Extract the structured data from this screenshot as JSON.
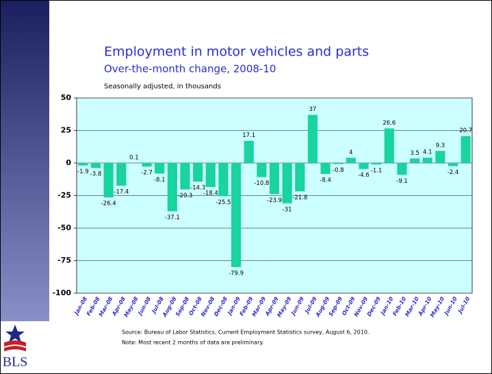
{
  "chart_data": {
    "type": "bar",
    "title": "Employment in motor vehicles and parts",
    "subtitle": "Over-the-month change, 2008-10",
    "unit_note": "Seasonally adjusted, in thousands",
    "source": "Source:  Bureau of Labor Statistics, Current Employment Statistics survey, August 6, 2010.",
    "footnote": "Note:  Most recent 2 months of data are preliminary.",
    "categories": [
      "Jan-08",
      "Feb-08",
      "Mar-08",
      "Apr-08",
      "May-08",
      "Jun-08",
      "Jul-08",
      "Aug-08",
      "Sep-08",
      "Oct-08",
      "Nov-08",
      "Dec-08",
      "Jan-09",
      "Feb-09",
      "Mar-09",
      "Apr-09",
      "May-09",
      "Jun-09",
      "Jul-09",
      "Aug-09",
      "Sep-09",
      "Oct-09",
      "Nov-09",
      "Dec-09",
      "Jan-10",
      "Feb-10",
      "Mar-10",
      "Apr-10",
      "May-10",
      "Jun-10",
      "Jul-10"
    ],
    "values": [
      -1.9,
      -3.8,
      -26.4,
      -17.4,
      0.1,
      -2.7,
      -8.1,
      -37.1,
      -20.3,
      -14.3,
      -18.4,
      -25.5,
      -79.9,
      17.1,
      -10.8,
      -23.9,
      -31,
      -21.8,
      37,
      -8.4,
      -0.8,
      4,
      -4.6,
      -1.1,
      26.6,
      -9.1,
      3.5,
      4.1,
      9.3,
      -2.4,
      20.7
    ],
    "color": "#19d3a0",
    "ylim": [
      -100,
      50
    ],
    "yticks": [
      -100,
      -75,
      -50,
      -25,
      0,
      25,
      50
    ],
    "grid": true
  },
  "logo_text": "BLS"
}
